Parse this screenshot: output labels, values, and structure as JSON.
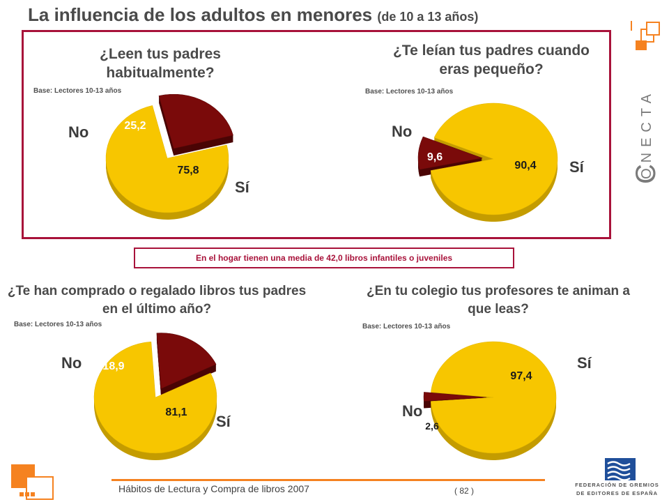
{
  "header": {
    "title": "La influencia de los adultos en menores",
    "title_sub": "(de 10 a 13 años)"
  },
  "brand": {
    "conecta": "ONECTA",
    "conecta_initial": "C",
    "federation_line1": "FEDERACIÓN DE GREMIOS",
    "federation_line2": "DE EDITORES DE ESPAÑA"
  },
  "note": "En el hogar tienen una media de 42,0 libros infantiles o juveniles",
  "footer": {
    "text": "Hábitos de Lectura y Compra de libros 2007",
    "page": "( 82 )"
  },
  "colors": {
    "yes": "#f7c600",
    "yes_shadow": "#c49c00",
    "no": "#7a0a0a",
    "no_shadow": "#4a0505",
    "accent": "#a8123a",
    "orange": "#f58220"
  },
  "chart_data": [
    {
      "type": "pie",
      "title": "¿Leen tus padres habitualmente?",
      "base": "Base: Lectores 10-13 años",
      "categories": [
        "Sí",
        "No"
      ],
      "values": [
        75.8,
        25.2
      ],
      "value_labels": [
        "75,8",
        "25,2"
      ]
    },
    {
      "type": "pie",
      "title": "¿Te leían tus padres cuando eras pequeño?",
      "base": "Base: Lectores 10-13 años",
      "categories": [
        "Sí",
        "No"
      ],
      "values": [
        90.4,
        9.6
      ],
      "value_labels": [
        "90,4",
        "9,6"
      ]
    },
    {
      "type": "pie",
      "title": "¿Te han comprado o regalado libros tus padres en el último año?",
      "base": "Base: Lectores 10-13 años",
      "categories": [
        "Sí",
        "No"
      ],
      "values": [
        81.1,
        18.9
      ],
      "value_labels": [
        "81,1",
        "18,9"
      ]
    },
    {
      "type": "pie",
      "title": "¿En tu colegio tus profesores te animan a que leas?",
      "base": "Base: Lectores 10-13 años",
      "categories": [
        "Sí",
        "No"
      ],
      "values": [
        97.4,
        2.6
      ],
      "value_labels": [
        "97,4",
        "2,6"
      ]
    }
  ]
}
